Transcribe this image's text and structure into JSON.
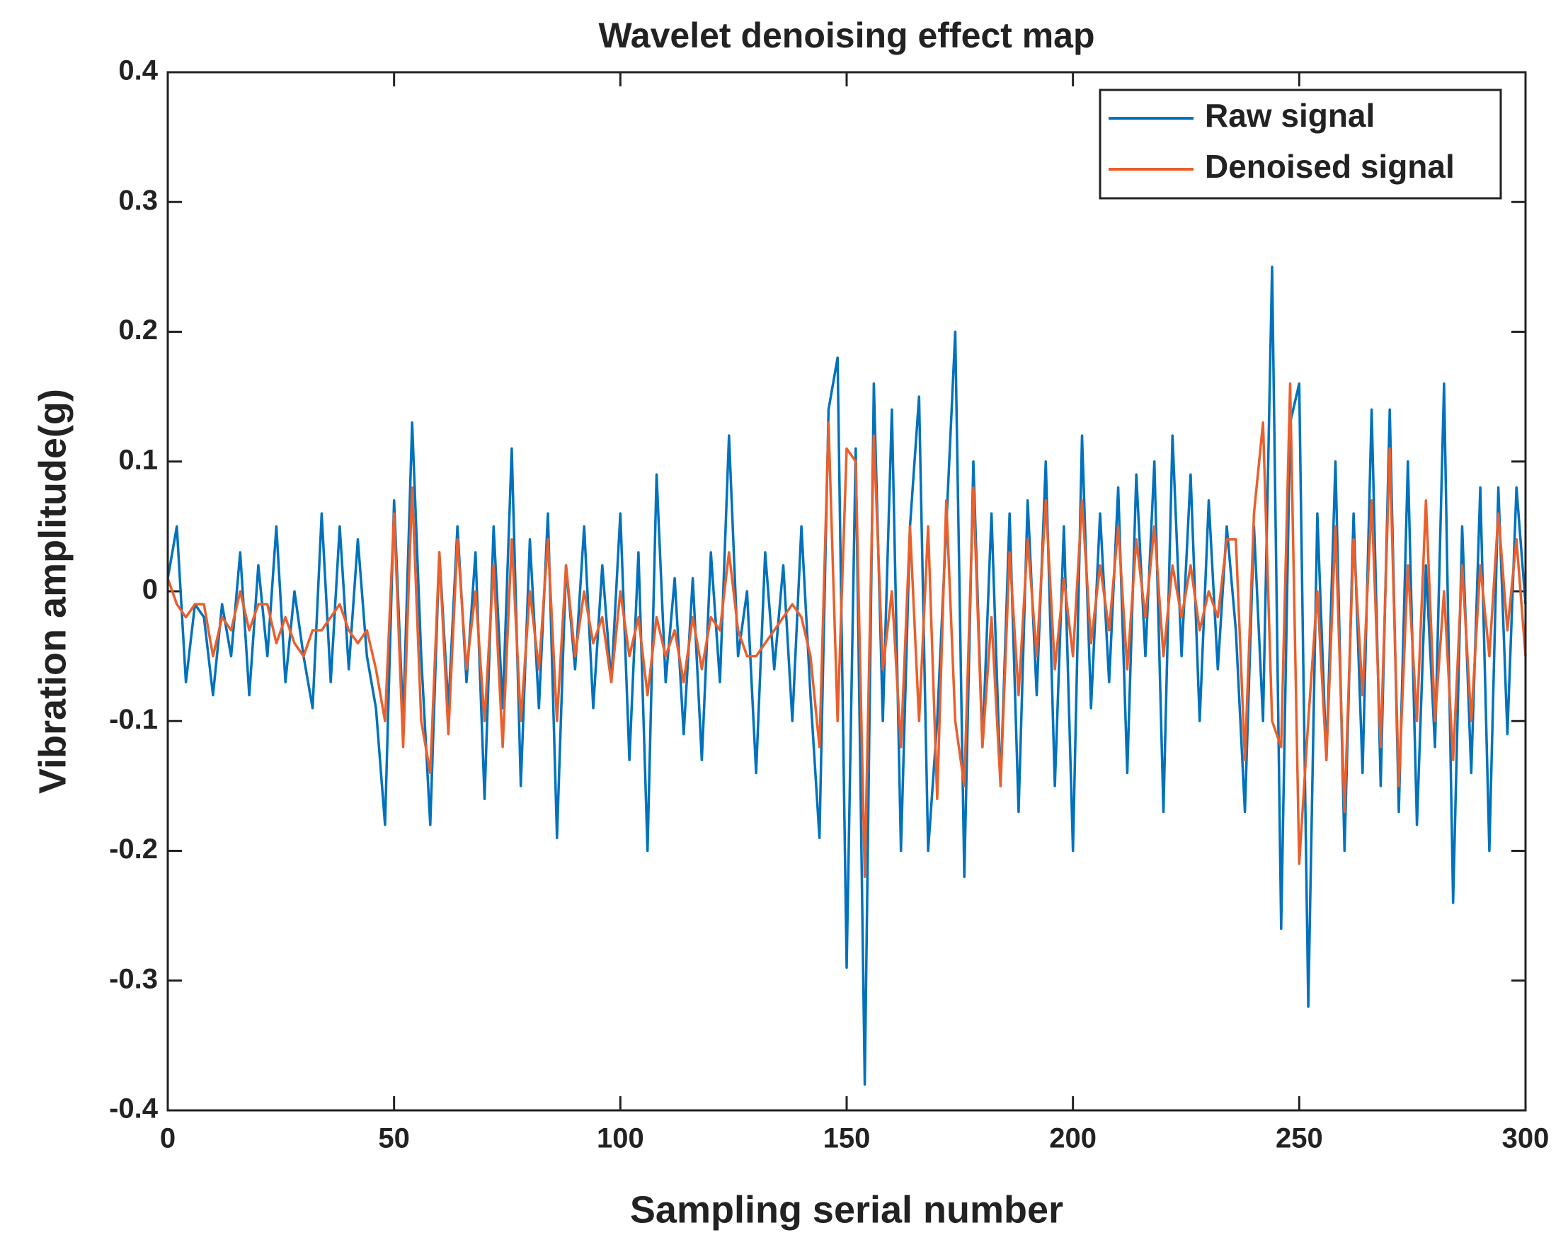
{
  "chart_data": {
    "type": "line",
    "title": "Wavelet denoising effect map",
    "xlabel": "Sampling serial number",
    "ylabel": "Vibration amplitude(g)",
    "x": [
      0,
      2,
      4,
      6,
      8,
      10,
      12,
      14,
      16,
      18,
      20,
      22,
      24,
      26,
      28,
      30,
      32,
      34,
      36,
      38,
      40,
      42,
      44,
      46,
      48,
      50,
      52,
      54,
      56,
      58,
      60,
      62,
      64,
      66,
      68,
      70,
      72,
      74,
      76,
      78,
      80,
      82,
      84,
      86,
      88,
      90,
      92,
      94,
      96,
      98,
      100,
      102,
      104,
      106,
      108,
      110,
      112,
      114,
      116,
      118,
      120,
      122,
      124,
      126,
      128,
      130,
      132,
      134,
      136,
      138,
      140,
      142,
      144,
      146,
      148,
      150,
      152,
      154,
      156,
      158,
      160,
      162,
      164,
      166,
      168,
      170,
      172,
      174,
      176,
      178,
      180,
      182,
      184,
      186,
      188,
      190,
      192,
      194,
      196,
      198,
      200,
      202,
      204,
      206,
      208,
      210,
      212,
      214,
      216,
      218,
      220,
      222,
      224,
      226,
      228,
      230,
      232,
      234,
      236,
      238,
      240,
      242,
      244,
      246,
      248,
      250,
      252,
      254,
      256,
      258,
      260,
      262,
      264,
      266,
      268,
      270,
      272,
      274,
      276,
      278,
      280,
      282,
      284,
      286,
      288,
      290,
      292,
      294,
      296,
      298,
      300
    ],
    "series": [
      {
        "name": "Raw signal",
        "color": "#0072bd",
        "values": [
          0.01,
          0.05,
          -0.07,
          -0.01,
          -0.02,
          -0.08,
          -0.01,
          -0.05,
          0.03,
          -0.08,
          0.02,
          -0.05,
          0.05,
          -0.07,
          0.0,
          -0.05,
          -0.09,
          0.06,
          -0.07,
          0.05,
          -0.06,
          0.04,
          -0.05,
          -0.09,
          -0.18,
          0.07,
          -0.1,
          0.13,
          -0.05,
          -0.18,
          0.03,
          -0.09,
          0.05,
          -0.07,
          0.03,
          -0.16,
          0.05,
          -0.09,
          0.11,
          -0.15,
          0.04,
          -0.09,
          0.06,
          -0.19,
          0.02,
          -0.06,
          0.05,
          -0.09,
          0.02,
          -0.07,
          0.06,
          -0.13,
          0.03,
          -0.2,
          0.09,
          -0.07,
          0.01,
          -0.11,
          0.01,
          -0.13,
          0.03,
          -0.07,
          0.12,
          -0.05,
          0.0,
          -0.14,
          0.03,
          -0.06,
          0.02,
          -0.1,
          0.05,
          -0.08,
          -0.19,
          0.14,
          0.18,
          -0.29,
          0.11,
          -0.38,
          0.16,
          -0.1,
          0.14,
          -0.2,
          0.05,
          0.15,
          -0.2,
          -0.1,
          0.05,
          0.2,
          -0.22,
          0.1,
          -0.12,
          0.06,
          -0.15,
          0.06,
          -0.17,
          0.07,
          -0.08,
          0.1,
          -0.15,
          0.05,
          -0.2,
          0.12,
          -0.09,
          0.06,
          -0.07,
          0.08,
          -0.14,
          0.09,
          -0.05,
          0.1,
          -0.17,
          0.12,
          -0.05,
          0.09,
          -0.1,
          0.07,
          -0.06,
          0.05,
          -0.03,
          -0.17,
          0.05,
          -0.1,
          0.25,
          -0.26,
          0.13,
          0.16,
          -0.32,
          0.06,
          -0.13,
          0.1,
          -0.2,
          0.06,
          -0.14,
          0.14,
          -0.15,
          0.14,
          -0.17,
          0.1,
          -0.18,
          0.02,
          -0.12,
          0.16,
          -0.24,
          0.05,
          -0.14,
          0.08,
          -0.2,
          0.08,
          -0.11,
          0.08,
          -0.01
        ]
      },
      {
        "name": "Denoised signal",
        "color": "#ea5f2c",
        "values": [
          0.01,
          -0.01,
          -0.02,
          -0.01,
          -0.01,
          -0.05,
          -0.02,
          -0.03,
          0.0,
          -0.03,
          -0.01,
          -0.01,
          -0.04,
          -0.02,
          -0.04,
          -0.05,
          -0.03,
          -0.03,
          -0.02,
          -0.01,
          -0.03,
          -0.04,
          -0.03,
          -0.06,
          -0.1,
          0.06,
          -0.12,
          0.08,
          -0.1,
          -0.14,
          0.03,
          -0.11,
          0.04,
          -0.06,
          0.0,
          -0.1,
          0.02,
          -0.12,
          0.04,
          -0.1,
          0.0,
          -0.06,
          0.04,
          -0.1,
          0.02,
          -0.05,
          0.0,
          -0.04,
          -0.02,
          -0.07,
          0.0,
          -0.05,
          -0.02,
          -0.08,
          -0.02,
          -0.05,
          -0.03,
          -0.07,
          -0.02,
          -0.06,
          -0.02,
          -0.03,
          0.03,
          -0.03,
          -0.05,
          -0.05,
          -0.04,
          -0.03,
          -0.02,
          -0.01,
          -0.02,
          -0.05,
          -0.12,
          0.13,
          -0.1,
          0.11,
          0.1,
          -0.22,
          0.12,
          -0.06,
          0.0,
          -0.12,
          0.05,
          -0.1,
          0.05,
          -0.16,
          0.07,
          -0.1,
          -0.15,
          0.08,
          -0.12,
          -0.02,
          -0.15,
          0.03,
          -0.08,
          0.04,
          -0.05,
          0.07,
          -0.06,
          0.01,
          -0.05,
          0.07,
          -0.04,
          0.02,
          -0.03,
          0.05,
          -0.06,
          0.04,
          -0.02,
          0.05,
          -0.05,
          0.02,
          -0.02,
          0.02,
          -0.03,
          0.0,
          -0.02,
          0.04,
          0.04,
          -0.13,
          0.06,
          0.13,
          -0.1,
          -0.12,
          0.16,
          -0.21,
          -0.1,
          0.0,
          -0.13,
          0.05,
          -0.17,
          0.04,
          -0.08,
          0.07,
          -0.12,
          0.11,
          -0.15,
          0.02,
          -0.1,
          0.07,
          -0.1,
          0.0,
          -0.13,
          0.02,
          -0.1,
          0.02,
          -0.05,
          0.06,
          -0.03,
          0.04,
          -0.05
        ]
      }
    ],
    "xlim": [
      0,
      300
    ],
    "xticks": [
      0,
      50,
      100,
      150,
      200,
      250,
      300
    ],
    "ylim": [
      -0.4,
      0.4
    ],
    "yticks": [
      -0.4,
      -0.3,
      -0.2,
      -0.1,
      0,
      0.1,
      0.2,
      0.3,
      0.4
    ],
    "grid": false,
    "legend": "northeast"
  }
}
